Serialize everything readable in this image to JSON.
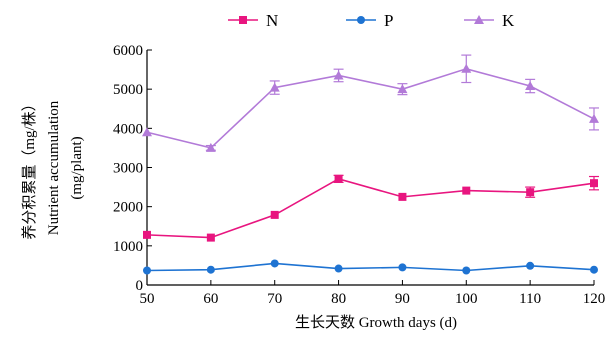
{
  "chart_data": {
    "type": "line",
    "x": [
      50,
      60,
      70,
      80,
      90,
      100,
      110,
      120
    ],
    "xlim": [
      50,
      120
    ],
    "ylim": [
      0,
      6000
    ],
    "xticks": [
      50,
      60,
      70,
      80,
      90,
      100,
      110,
      120
    ],
    "yticks": [
      0,
      1000,
      2000,
      3000,
      4000,
      5000,
      6000
    ],
    "xlabel": "生长天数 Growth days (d)",
    "ylabel": {
      "line1": "养分积累量（mg/株）",
      "line2": "Nutrient accumulation",
      "line3": "(mg/plant)"
    },
    "legend_position": "top",
    "grid": false,
    "series": [
      {
        "name": "N",
        "color": "#e8157f",
        "marker": "square",
        "values": [
          1280,
          1210,
          1790,
          2710,
          2250,
          2410,
          2370,
          2600
        ],
        "errors": [
          0,
          0,
          0,
          90,
          0,
          0,
          130,
          170
        ]
      },
      {
        "name": "P",
        "color": "#1e73d2",
        "marker": "circle",
        "values": [
          370,
          390,
          550,
          420,
          450,
          370,
          490,
          390
        ],
        "errors": [
          0,
          0,
          0,
          0,
          0,
          0,
          0,
          0
        ]
      },
      {
        "name": "K",
        "color": "#b27ad8",
        "marker": "triangle",
        "values": [
          3900,
          3500,
          5040,
          5350,
          5000,
          5520,
          5080,
          4240
        ],
        "errors": [
          0,
          60,
          170,
          160,
          140,
          350,
          170,
          280
        ]
      }
    ]
  }
}
